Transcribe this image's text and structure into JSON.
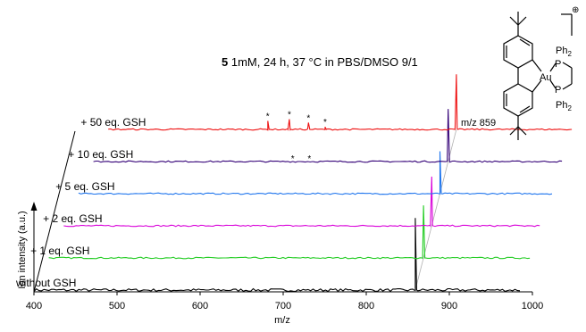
{
  "chart_data": {
    "type": "line",
    "title_bold": "5",
    "title_rest": " 1mM, 24 h, 37 °C in PBS/DMSO 9/1",
    "xlabel": "m/z",
    "ylabel": "Ion intensity (a.u.)",
    "xlim": [
      400,
      1000
    ],
    "x_ticks": [
      "400",
      "500",
      "600",
      "700",
      "800",
      "900",
      "1000"
    ],
    "peak_label": "m/z 859",
    "grid": false,
    "legend": "none",
    "series": [
      {
        "name": "without GSH",
        "color": "#000000",
        "x_range": [
          400,
          1000
        ],
        "peaks": [
          {
            "x": 859,
            "y": 0.85
          }
        ]
      },
      {
        "name": "+ 1 eq. GSH",
        "color": "#22cc22",
        "x_range": [
          400,
          1000
        ],
        "peaks": [
          {
            "x": 859,
            "y": 0.62
          }
        ]
      },
      {
        "name": "+ 2 eq. GSH",
        "color": "#d900d9",
        "x_range": [
          400,
          1000
        ],
        "peaks": [
          {
            "x": 859,
            "y": 0.58
          }
        ]
      },
      {
        "name": "+ 5 eq. GSH",
        "color": "#2277ee",
        "x_range": [
          400,
          1000
        ],
        "peaks": [
          {
            "x": 859,
            "y": 0.5
          }
        ]
      },
      {
        "name": "+ 10 eq. GSH",
        "color": "#330077",
        "x_range": [
          400,
          1000
        ],
        "peaks": [
          {
            "x": 859,
            "y": 0.62
          }
        ]
      },
      {
        "name": "+ 50 eq. GSH",
        "color": "#ee1111",
        "x_range": [
          400,
          1000
        ],
        "peaks": [
          {
            "x": 859,
            "y": 0.65
          },
          {
            "x": 632,
            "y": 0.1
          },
          {
            "x": 658,
            "y": 0.12
          },
          {
            "x": 681,
            "y": 0.08
          },
          {
            "x": 701,
            "y": 0.03
          }
        ]
      }
    ],
    "annotations": {
      "star": "*",
      "stars_50": [
        632,
        658,
        681,
        701
      ],
      "stars_10": [
        672,
        692
      ]
    }
  },
  "structure": {
    "charge": "⊕",
    "metal": "Au",
    "ligand_top": "Ph",
    "ligand_top_sub": "2",
    "ligand_bottom": "Ph",
    "ligand_bottom_sub": "2",
    "p_top": "P",
    "p_bottom": "P"
  }
}
